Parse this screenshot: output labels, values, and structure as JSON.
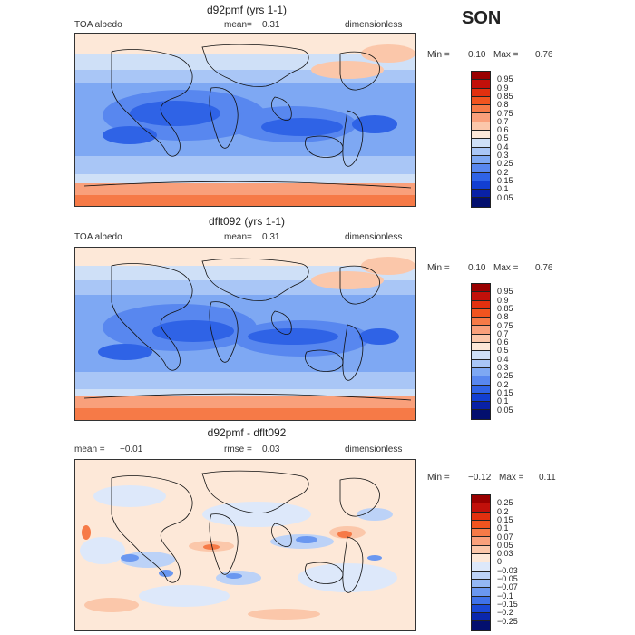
{
  "season": "SON",
  "panels": [
    {
      "id": "p1",
      "title": "d92pmf (yrs 1-1)",
      "left_label": "TOA albedo",
      "mean_label": "mean=",
      "mean_value": "0.31",
      "units": "dimensionless",
      "min_label": "Min =",
      "min_value": "0.10",
      "max_label": "Max =",
      "max_value": "0.76",
      "levels": [
        "0.95",
        "0.9",
        "0.85",
        "0.8",
        "0.75",
        "0.7",
        "0.6",
        "0.5",
        "0.4",
        "0.3",
        "0.25",
        "0.2",
        "0.15",
        "0.1",
        "0.05"
      ],
      "colors": [
        "#990000",
        "#c1100a",
        "#e2300f",
        "#f1541f",
        "#f67a47",
        "#f9a07b",
        "#fbc7aa",
        "#fde8d8",
        "#cfe0f7",
        "#a9c6f6",
        "#7ea8f3",
        "#5887ef",
        "#2f63e6",
        "#123fd1",
        "#0921a6",
        "#030f6e"
      ]
    },
    {
      "id": "p2",
      "title": "dflt092 (yrs 1-1)",
      "left_label": "TOA albedo",
      "mean_label": "mean=",
      "mean_value": "0.31",
      "units": "dimensionless",
      "min_label": "Min =",
      "min_value": "0.10",
      "max_label": "Max =",
      "max_value": "0.76",
      "levels": [
        "0.95",
        "0.9",
        "0.85",
        "0.8",
        "0.75",
        "0.7",
        "0.6",
        "0.5",
        "0.4",
        "0.3",
        "0.25",
        "0.2",
        "0.15",
        "0.1",
        "0.05"
      ],
      "colors": [
        "#990000",
        "#c1100a",
        "#e2300f",
        "#f1541f",
        "#f67a47",
        "#f9a07b",
        "#fbc7aa",
        "#fde8d8",
        "#cfe0f7",
        "#a9c6f6",
        "#7ea8f3",
        "#5887ef",
        "#2f63e6",
        "#123fd1",
        "#0921a6",
        "#030f6e"
      ]
    },
    {
      "id": "p3",
      "title": "d92pmf - dflt092",
      "left_label": "mean =",
      "left_value": "−0.01",
      "mean_label": "rmse =",
      "mean_value": "0.03",
      "units": "dimensionless",
      "min_label": "Min =",
      "min_value": "−0.12",
      "max_label": "Max =",
      "max_value": "0.11",
      "levels": [
        "0.25",
        "0.2",
        "0.15",
        "0.1",
        "0.07",
        "0.05",
        "0.03",
        "0",
        "−0.03",
        "−0.05",
        "−0.07",
        "−0.1",
        "−0.15",
        "−0.2",
        "−0.25"
      ],
      "colors": [
        "#990000",
        "#c1100a",
        "#e2300f",
        "#f1541f",
        "#f67a47",
        "#f9a07b",
        "#fbc7aa",
        "#fde8d8",
        "#dde8fa",
        "#bcd2f7",
        "#94b7f4",
        "#6a97f0",
        "#3f72e9",
        "#1a48d6",
        "#0a27ad",
        "#030f6e"
      ]
    }
  ],
  "chart_data": [
    {
      "type": "heatmap",
      "title": "d92pmf (yrs 1-1)",
      "field": "TOA albedo",
      "units": "dimensionless",
      "mean": 0.31,
      "min": 0.1,
      "max": 0.76,
      "contour_levels": [
        0.05,
        0.1,
        0.15,
        0.2,
        0.25,
        0.3,
        0.4,
        0.5,
        0.6,
        0.7,
        0.75,
        0.8,
        0.85,
        0.9,
        0.95
      ]
    },
    {
      "type": "heatmap",
      "title": "dflt092 (yrs 1-1)",
      "field": "TOA albedo",
      "units": "dimensionless",
      "mean": 0.31,
      "min": 0.1,
      "max": 0.76,
      "contour_levels": [
        0.05,
        0.1,
        0.15,
        0.2,
        0.25,
        0.3,
        0.4,
        0.5,
        0.6,
        0.7,
        0.75,
        0.8,
        0.85,
        0.9,
        0.95
      ]
    },
    {
      "type": "heatmap",
      "title": "d92pmf - dflt092",
      "units": "dimensionless",
      "mean": -0.01,
      "rmse": 0.03,
      "min": -0.12,
      "max": 0.11,
      "contour_levels": [
        -0.25,
        -0.2,
        -0.15,
        -0.1,
        -0.07,
        -0.05,
        -0.03,
        0,
        0.03,
        0.05,
        0.07,
        0.1,
        0.15,
        0.2,
        0.25
      ]
    }
  ]
}
